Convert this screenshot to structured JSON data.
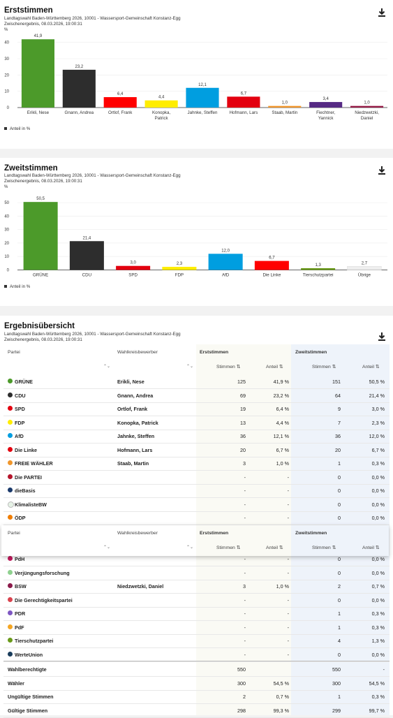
{
  "erst": {
    "title": "Erststimmen",
    "sub1": "Landtagswahl Baden-Württemberg 2026, 10001 - Wassersport-Gemeinschaft Konstanz-Egg",
    "sub2": "Zwischenergebnis, 08.03.2026, 19:00:31",
    "legend": "Anteil in %",
    "chart_data": {
      "type": "bar",
      "ylabel": "%",
      "ylim": [
        0,
        45
      ],
      "yticks": [
        "0",
        "10",
        "20",
        "30",
        "40"
      ],
      "categories": [
        [
          "Erikli, Nese"
        ],
        [
          "Gnann, Andrea"
        ],
        [
          "Ortlof, Frank"
        ],
        [
          "Konopka,",
          "Patrick"
        ],
        [
          "Jahnke, Steffen"
        ],
        [
          "Hofmann, Lars"
        ],
        [
          "Staab, Martin"
        ],
        [
          "Fiechtner,",
          "Yannick"
        ],
        [
          "Niedzwetzki,",
          "Daniel"
        ]
      ],
      "values": [
        41.9,
        23.2,
        6.4,
        4.4,
        12.1,
        6.7,
        1.0,
        3.4,
        1.0
      ],
      "labels": [
        "41,9",
        "23,2",
        "6,4",
        "4,4",
        "12,1",
        "6,7",
        "1,0",
        "3,4",
        "1,0"
      ],
      "colors": [
        "#4c9a2a",
        "#2d2d2d",
        "#ff0000",
        "#ffed00",
        "#009ee0",
        "#e3000f",
        "#f0962c",
        "#562a84",
        "#951b46"
      ]
    }
  },
  "zweit": {
    "title": "Zweitstimmen",
    "sub1": "Landtagswahl Baden-Württemberg 2026, 10001 - Wassersport-Gemeinschaft Konstanz-Egg",
    "sub2": "Zwischenergebnis, 08.03.2026, 19:00:31",
    "legend": "Anteil in %",
    "chart_data": {
      "type": "bar",
      "ylabel": "%",
      "ylim": [
        0,
        55
      ],
      "yticks": [
        "0",
        "10",
        "20",
        "30",
        "40",
        "50"
      ],
      "categories": [
        [
          "GRÜNE"
        ],
        [
          "CDU"
        ],
        [
          "SPD"
        ],
        [
          "FDP"
        ],
        [
          "AfD"
        ],
        [
          "Die Linke"
        ],
        [
          "Tierschutzpartei"
        ],
        [
          "Übrige"
        ]
      ],
      "values": [
        50.5,
        21.4,
        3.0,
        2.3,
        12.0,
        6.7,
        1.3,
        2.7
      ],
      "labels": [
        "50,5",
        "21,4",
        "3,0",
        "2,3",
        "12,0",
        "6,7",
        "1,3",
        "2,7"
      ],
      "colors": [
        "#4c9a2a",
        "#2d2d2d",
        "#e3000f",
        "#ffed00",
        "#009ee0",
        "#ff0000",
        "#6a9a1a",
        "#eeeeee"
      ]
    }
  },
  "table": {
    "title": "Ergebnisübersicht",
    "sub1": "Landtagswahl Baden-Württemberg 2026, 10001 - Wassersport-Gemeinschaft Konstanz-Egg",
    "sub2": "Zwischenergebnis, 08.03.2026, 19:00:31",
    "h_partei": "Partei",
    "h_bewerber": "Wahlkreisbewerber",
    "h_erst": "Erststimmen",
    "h_zweit": "Zweitstimmen",
    "h_stimmen": "Stimmen",
    "h_anteil": "Anteil",
    "rows": [
      {
        "party": "GRÜNE",
        "color": "#4c9a2a",
        "cand": "Erikli, Nese",
        "s1": "125",
        "a1": "41,9 %",
        "s2": "151",
        "a2": "50,5 %"
      },
      {
        "party": "CDU",
        "color": "#2d2d2d",
        "cand": "Gnann, Andrea",
        "s1": "69",
        "a1": "23,2 %",
        "s2": "64",
        "a2": "21,4 %"
      },
      {
        "party": "SPD",
        "color": "#e3000f",
        "cand": "Ortlof, Frank",
        "s1": "19",
        "a1": "6,4 %",
        "s2": "9",
        "a2": "3,0 %"
      },
      {
        "party": "FDP",
        "color": "#ffed00",
        "cand": "Konopka, Patrick",
        "s1": "13",
        "a1": "4,4 %",
        "s2": "7",
        "a2": "2,3 %"
      },
      {
        "party": "AfD",
        "color": "#009ee0",
        "cand": "Jahnke, Steffen",
        "s1": "36",
        "a1": "12,1 %",
        "s2": "36",
        "a2": "12,0 %"
      },
      {
        "party": "Die Linke",
        "color": "#e3000f",
        "cand": "Hofmann, Lars",
        "s1": "20",
        "a1": "6,7 %",
        "s2": "20",
        "a2": "6,7 %"
      },
      {
        "party": "FREIE WÄHLER",
        "color": "#f0962c",
        "cand": "Staab, Martin",
        "s1": "3",
        "a1": "1,0 %",
        "s2": "1",
        "a2": "0,3 %"
      },
      {
        "party": "Die PARTEI",
        "color": "#b5152b",
        "cand": "",
        "s1": "-",
        "a1": "-",
        "s2": "0",
        "a2": "0,0 %"
      },
      {
        "party": "dieBasis",
        "color": "#1b3a6b",
        "cand": "",
        "s1": "-",
        "a1": "-",
        "s2": "0",
        "a2": "0,0 %"
      },
      {
        "party": "KlimalisteBW",
        "color": "#e6f2e6",
        "cand": "",
        "s1": "-",
        "a1": "-",
        "s2": "0",
        "a2": "0,0 %"
      },
      {
        "party": "ÖDP",
        "color": "#f07d00",
        "cand": "",
        "s1": "-",
        "a1": "-",
        "s2": "0",
        "a2": "0,0 %"
      },
      {
        "party": "",
        "color": "",
        "cand": "",
        "s1": "",
        "a1": "",
        "s2": "",
        "a2": ""
      },
      {
        "party": "PdH",
        "color": "#c2185b",
        "cand": "",
        "s1": "-",
        "a1": "-",
        "s2": "0",
        "a2": "0,0 %"
      },
      {
        "party": "Verjüngungsforschung",
        "color": "#8fd18f",
        "cand": "",
        "s1": "-",
        "a1": "-",
        "s2": "0",
        "a2": "0,0 %"
      },
      {
        "party": "BSW",
        "color": "#8b1a4a",
        "cand": "Niedzwetzki, Daniel",
        "s1": "3",
        "a1": "1,0 %",
        "s2": "2",
        "a2": "0,7 %"
      },
      {
        "party": "Die Gerechtigkeitspartei",
        "color": "#d9434e",
        "cand": "",
        "s1": "-",
        "a1": "-",
        "s2": "0",
        "a2": "0,0 %"
      },
      {
        "party": "PDR",
        "color": "#7e57c2",
        "cand": "",
        "s1": "-",
        "a1": "-",
        "s2": "1",
        "a2": "0,3 %"
      },
      {
        "party": "PdF",
        "color": "#f5a623",
        "cand": "",
        "s1": "-",
        "a1": "-",
        "s2": "1",
        "a2": "0,3 %"
      },
      {
        "party": "Tierschutzpartei",
        "color": "#6a9a1a",
        "cand": "",
        "s1": "-",
        "a1": "-",
        "s2": "4",
        "a2": "1,3 %"
      },
      {
        "party": "WerteUnion",
        "color": "#1a3d5c",
        "cand": "",
        "s1": "-",
        "a1": "-",
        "s2": "0",
        "a2": "0,0 %"
      }
    ],
    "totals": [
      {
        "label": "Wahlberechtigte",
        "s1": "550",
        "a1": "",
        "s2": "550",
        "a2": "-"
      },
      {
        "label": "Wähler",
        "s1": "300",
        "a1": "54,5 %",
        "s2": "300",
        "a2": "54,5 %"
      },
      {
        "label": "Ungültige Stimmen",
        "s1": "2",
        "a1": "0,7 %",
        "s2": "1",
        "a2": "0,3 %"
      },
      {
        "label": "Gültige Stimmen",
        "s1": "298",
        "a1": "99,3 %",
        "s2": "299",
        "a2": "99,7 %"
      }
    ]
  }
}
